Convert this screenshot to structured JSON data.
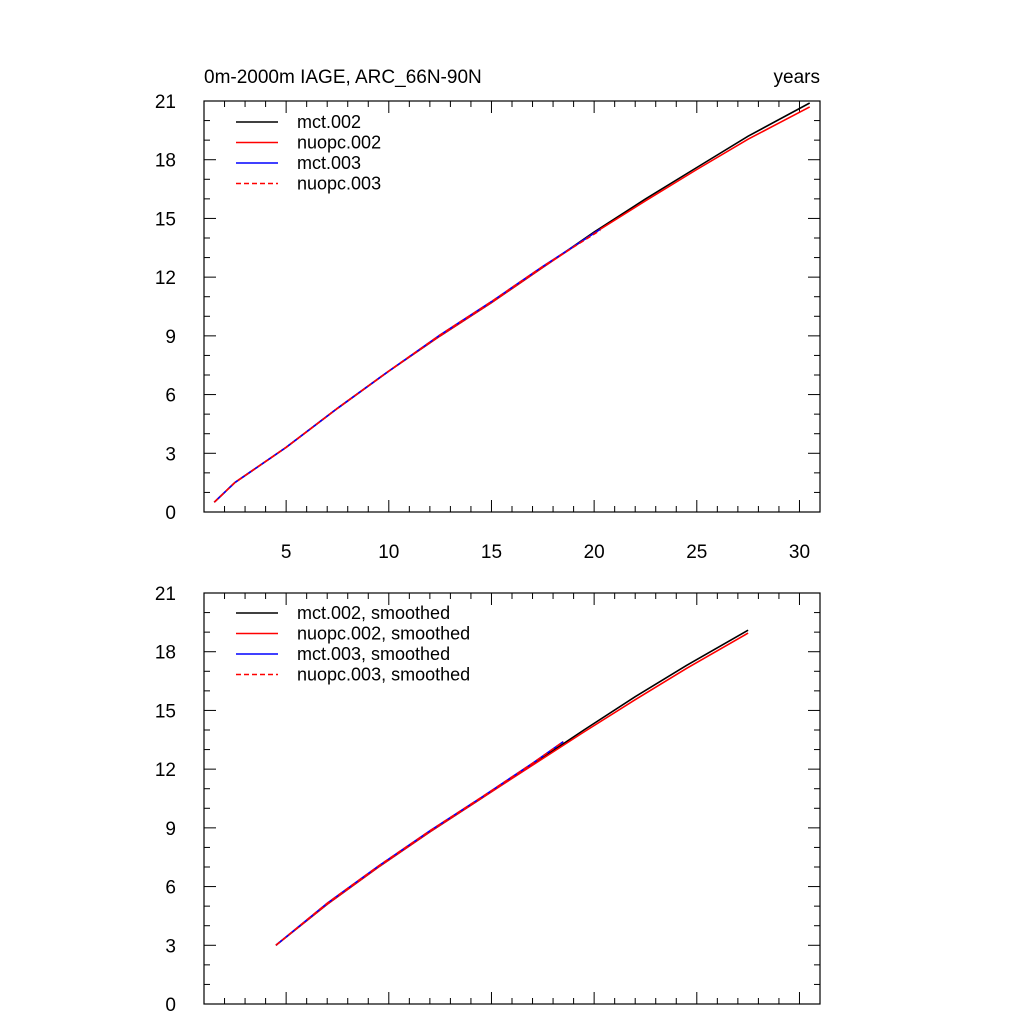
{
  "chart_data": [
    {
      "type": "line",
      "title": "0m-2000m IAGE, ARC_66N-90N",
      "title_right": "years",
      "xlabel": "",
      "ylabel": "",
      "xlim": [
        1,
        31
      ],
      "ylim": [
        0,
        21
      ],
      "xticks": [
        5,
        10,
        15,
        20,
        25,
        30
      ],
      "xtick_labels": [
        "5",
        "10",
        "15",
        "20",
        "25",
        "30"
      ],
      "yticks": [
        0,
        3,
        6,
        9,
        12,
        15,
        18,
        21
      ],
      "ytick_labels": [
        "0",
        "3",
        "6",
        "9",
        "12",
        "15",
        "18",
        "21"
      ],
      "legend_position": "top-left",
      "grid": false,
      "series": [
        {
          "name": "mct.002",
          "color": "#000000",
          "dash": "solid",
          "x": [
            1.5,
            2.5,
            5,
            7.5,
            10,
            12.5,
            15,
            17.5,
            20,
            22.5,
            25,
            27.5,
            30.5
          ],
          "y": [
            0.5,
            1.5,
            3.3,
            5.3,
            7.2,
            9.0,
            10.7,
            12.5,
            14.3,
            16.0,
            17.6,
            19.2,
            20.9
          ]
        },
        {
          "name": "nuopc.002",
          "color": "#ff0000",
          "dash": "solid",
          "x": [
            1.5,
            2.5,
            5,
            7.5,
            10,
            12.5,
            15,
            17.5,
            20,
            22.5,
            25,
            27.5,
            30.5
          ],
          "y": [
            0.5,
            1.5,
            3.3,
            5.3,
            7.2,
            9.0,
            10.7,
            12.5,
            14.25,
            15.9,
            17.5,
            19.05,
            20.7
          ]
        },
        {
          "name": "mct.003",
          "color": "#0000ff",
          "dash": "solid",
          "x": [
            1.5,
            2.5,
            5,
            7.5,
            10,
            12.5,
            15,
            17.5,
            20.3
          ],
          "y": [
            0.5,
            1.5,
            3.3,
            5.3,
            7.2,
            9.05,
            10.75,
            12.55,
            14.45
          ]
        },
        {
          "name": "nuopc.003",
          "color": "#ff0000",
          "dash": "dashed",
          "x": [
            1.5,
            2.5,
            5,
            7.5,
            10,
            12.5,
            15,
            17.5,
            20.3
          ],
          "y": [
            0.5,
            1.5,
            3.3,
            5.3,
            7.2,
            9.05,
            10.75,
            12.55,
            14.4
          ]
        }
      ]
    },
    {
      "type": "line",
      "title": "",
      "xlabel": "",
      "ylabel": "",
      "xlim": [
        1,
        31
      ],
      "ylim": [
        0,
        21
      ],
      "xticks": [
        5,
        10,
        15,
        20,
        25,
        30
      ],
      "xtick_labels": [],
      "yticks": [
        0,
        3,
        6,
        9,
        12,
        15,
        18,
        21
      ],
      "ytick_labels": [
        "0",
        "3",
        "6",
        "9",
        "12",
        "15",
        "18",
        "21"
      ],
      "legend_position": "top-left",
      "grid": false,
      "series": [
        {
          "name": "mct.002, smoothed",
          "color": "#000000",
          "dash": "solid",
          "x": [
            4.5,
            7,
            9.5,
            12,
            14.5,
            17,
            19.5,
            22,
            24.5,
            27.5
          ],
          "y": [
            3.0,
            5.1,
            7.0,
            8.8,
            10.5,
            12.25,
            14.0,
            15.7,
            17.3,
            19.1
          ]
        },
        {
          "name": "nuopc.002, smoothed",
          "color": "#ff0000",
          "dash": "solid",
          "x": [
            4.5,
            7,
            9.5,
            12,
            14.5,
            17,
            19.5,
            22,
            24.5,
            27.5
          ],
          "y": [
            3.0,
            5.1,
            7.0,
            8.8,
            10.5,
            12.2,
            13.9,
            15.55,
            17.15,
            18.95
          ]
        },
        {
          "name": "mct.003, smoothed",
          "color": "#0000ff",
          "dash": "solid",
          "x": [
            4.5,
            7,
            9.5,
            12,
            14.5,
            17,
            18.5
          ],
          "y": [
            3.0,
            5.15,
            7.05,
            8.85,
            10.55,
            12.3,
            13.4
          ]
        },
        {
          "name": "nuopc.003, smoothed",
          "color": "#ff0000",
          "dash": "dashed",
          "x": [
            4.5,
            7,
            9.5,
            12,
            14.5,
            17,
            18.5
          ],
          "y": [
            3.0,
            5.15,
            7.05,
            8.85,
            10.55,
            12.3,
            13.4
          ]
        }
      ]
    }
  ]
}
